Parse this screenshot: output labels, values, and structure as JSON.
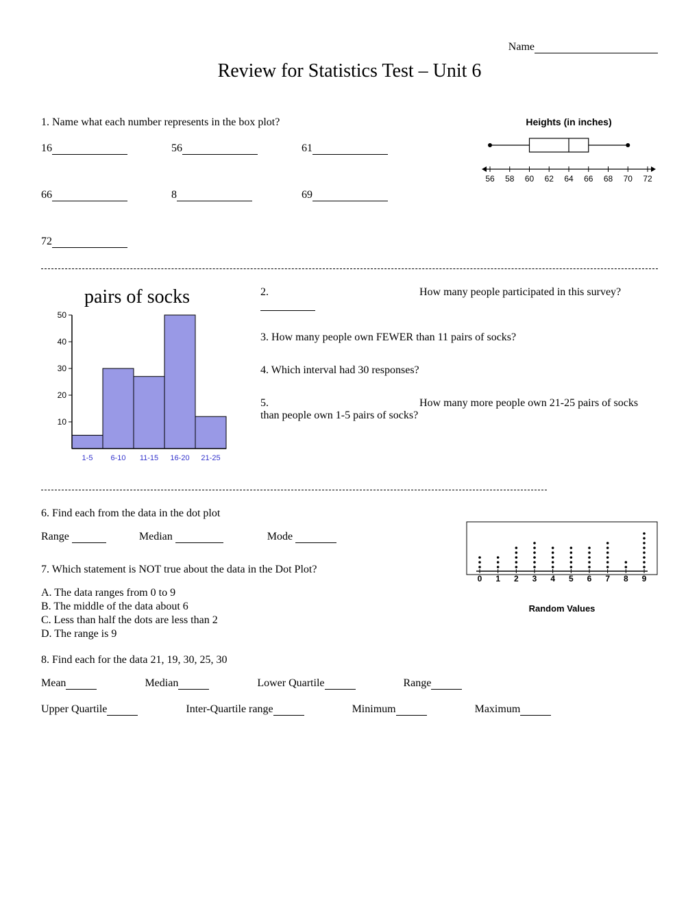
{
  "header": {
    "name_label": "Name",
    "title": "Review for Statistics Test – Unit 6"
  },
  "q1": {
    "prompt": "1.  Name what each number represents in the box plot?",
    "values": [
      "16",
      "56",
      "61",
      "66",
      "8",
      "69",
      "72"
    ],
    "blank_width": 110
  },
  "boxplot": {
    "title": "Heights (in inches)",
    "axis_min": 56,
    "axis_max": 72,
    "tick_step": 2,
    "ticks": [
      56,
      58,
      60,
      62,
      64,
      66,
      68,
      70,
      72
    ],
    "whisker_min": 56,
    "q1": 60,
    "median": 64,
    "q3": 66,
    "whisker_max": 70,
    "box_color": "#ffffff",
    "line_color": "#000000",
    "line_width": 1.2,
    "font_size": 12
  },
  "histogram": {
    "title": "pairs of socks",
    "categories": [
      "1-5",
      "6-10",
      "11-15",
      "16-20",
      "21-25"
    ],
    "values": [
      5,
      30,
      27,
      50,
      12
    ],
    "bar_color": "#9999e6",
    "bar_border": "#000000",
    "axis_color": "#000000",
    "label_color": "#3333cc",
    "ylim": [
      0,
      50
    ],
    "ytick_step": 10,
    "yticks": [
      10,
      20,
      30,
      40,
      50
    ],
    "font_size": 12,
    "label_font_size": 11
  },
  "hist_questions": {
    "q2": "How many people participated in this survey?",
    "q3": "3.  How many people own FEWER than 11 pairs of socks?",
    "q4": "4.  Which interval had 30 responses?",
    "q5": "How many more people own 21-25 pairs of socks than people own 1-5 pairs of socks?"
  },
  "q6": {
    "prompt": "6.  Find each from the data in the dot plot",
    "labels": [
      "Range",
      "Median",
      "Mode"
    ]
  },
  "dotplot": {
    "title": "Random Values",
    "x_values": [
      0,
      1,
      2,
      3,
      4,
      5,
      6,
      7,
      8,
      9
    ],
    "counts": [
      3,
      3,
      5,
      6,
      5,
      5,
      5,
      6,
      2,
      8
    ],
    "dot_color": "#000000",
    "axis_color": "#000000",
    "border_color": "#000000",
    "font_size": 12,
    "font_weight": "bold"
  },
  "q7": {
    "prompt": "7.  Which statement is NOT true about the data in the Dot Plot?",
    "choices": [
      "A.  The data ranges from 0 to 9",
      "B.  The middle of the data about 6",
      "C.  Less than half the dots are less than 2",
      "D.  The range is 9"
    ]
  },
  "q8": {
    "prompt": "8.  Find each for the data   21, 19, 30, 25, 30",
    "row1_labels": [
      "Mean",
      "Median",
      "Lower Quartile",
      "Range"
    ],
    "row2_labels": [
      "Upper Quartile",
      "Inter-Quartile range",
      "Minimum",
      "Maximum"
    ]
  }
}
